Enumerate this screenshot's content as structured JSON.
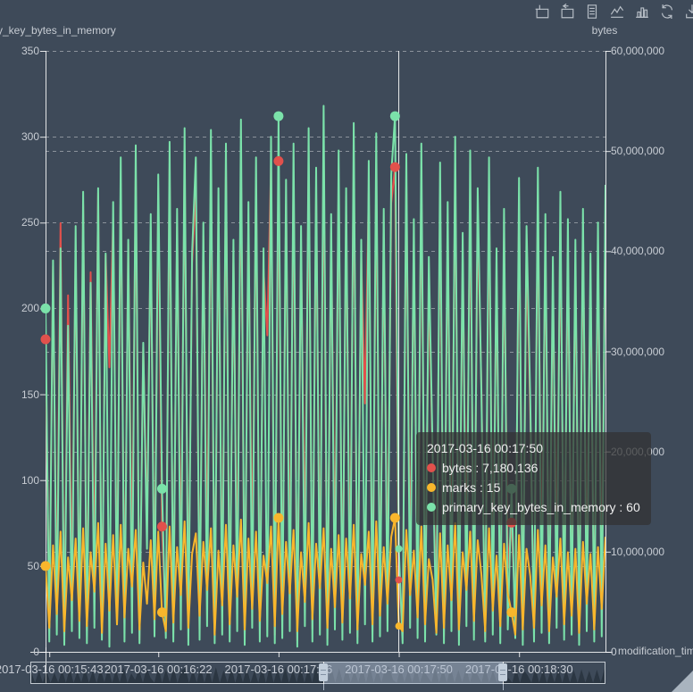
{
  "toolbar": {
    "icons": [
      {
        "name": "area-zoom-icon"
      },
      {
        "name": "zoom-reset-icon"
      },
      {
        "name": "data-view-icon"
      },
      {
        "name": "line-chart-icon"
      },
      {
        "name": "bar-chart-icon"
      },
      {
        "name": "restore-icon"
      },
      {
        "name": "save-image-icon"
      }
    ]
  },
  "chart_data": {
    "type": "line",
    "grid": {
      "dashed_gridlines": true,
      "legend": "none"
    },
    "y_axis_left": {
      "name": "primary_key_bytes_in_memory",
      "min": 0,
      "max": 350,
      "tick_values": [
        0,
        50,
        100,
        150,
        200,
        250,
        300,
        350
      ],
      "tick_labels": [
        "0",
        "50",
        "100",
        "150",
        "200",
        "250",
        "300",
        "350"
      ]
    },
    "y_axis_right": {
      "name": "bytes",
      "min": 0,
      "max": 60000000,
      "tick_values": [
        0,
        10000000,
        20000000,
        30000000,
        40000000,
        50000000,
        60000000
      ],
      "tick_labels": [
        "0",
        "10,000,000",
        "20,000,000",
        "30,000,000",
        "40,000,000",
        "50,000,000",
        "60,000,000"
      ]
    },
    "x_axis": {
      "name": "modification_time",
      "labels": [
        {
          "text": "2017-03-16 00:15:43",
          "index": 1
        },
        {
          "text": "2017-03-16 00:16:22",
          "index": 30
        },
        {
          "text": "2017-03-16 00:17:06",
          "index": 62
        },
        {
          "text": "2017-03-16 00:17:50",
          "index": 94
        },
        {
          "text": "2017-03-16 00:18:30",
          "index": 126
        }
      ]
    },
    "symbol_indices": [
      0,
      31,
      62,
      93,
      124
    ],
    "hover": {
      "index": 94,
      "time": "2017-03-16 00:17:50",
      "values": {
        "bytes": 7180136,
        "marks": 15,
        "primary_key_bytes_in_memory": 60
      }
    },
    "series": [
      {
        "name": "bytes",
        "axis": "right",
        "color": "#e1514c",
        "values": [
          31200000,
          2400000,
          38500000,
          4100000,
          42800000,
          1500000,
          35600000,
          6800000,
          40200000,
          3200000,
          44700000,
          2100000,
          37900000,
          7400000,
          45800000,
          1800000,
          39600000,
          28400000,
          43200000,
          5600000,
          46800000,
          2900000,
          40800000,
          8200000,
          47600000,
          1200000,
          30400000,
          12600000,
          41900000,
          4800000,
          45300000,
          12500000,
          2600000,
          48200000,
          1900000,
          42400000,
          7800000,
          49000000,
          3400000,
          38800000,
          46200000,
          2200000,
          41500000,
          9400000,
          47800000,
          1600000,
          44100000,
          5200000,
          48400000,
          2800000,
          39700000,
          6600000,
          49600000,
          1400000,
          43000000,
          8800000,
          46400000,
          2500000,
          38200000,
          31600000,
          48800000,
          1700000,
          49000000,
          3600000,
          44600000,
          7200000,
          47200000,
          1100000,
          40400000,
          9800000,
          48600000,
          2300000,
          45400000,
          6400000,
          50200000,
          1300000,
          41800000,
          8600000,
          46800000,
          2700000,
          43600000,
          7000000,
          49200000,
          1500000,
          39400000,
          24800000,
          45800000,
          2000000,
          48000000,
          4400000,
          41200000,
          6200000,
          44800000,
          48400000,
          7180136,
          1800000,
          46600000,
          8000000,
          40600000,
          3000000,
          47400000,
          2600000,
          36800000,
          19400000,
          5000000,
          45200000,
          1600000,
          42000000,
          7600000,
          48200000,
          2100000,
          39000000,
          9200000,
          46000000,
          2900000,
          43400000,
          26200000,
          1400000,
          45600000,
          6000000,
          37600000,
          2400000,
          41000000,
          8400000,
          12900000,
          3800000,
          44200000,
          1700000,
          39800000,
          23600000,
          2200000,
          45000000,
          7800000,
          40800000,
          1900000,
          36400000,
          8800000,
          42600000,
          3300000,
          40200000,
          5400000,
          38600000,
          1600000,
          41400000,
          7000000,
          37200000,
          2800000,
          39600000,
          6600000,
          43800000
        ]
      },
      {
        "name": "primary_key_bytes_in_memory",
        "axis": "left",
        "color": "#7be2aa",
        "values": [
          200,
          6,
          228,
          10,
          235,
          4,
          190,
          12,
          248,
          8,
          268,
          5,
          215,
          14,
          270,
          7,
          232,
          3,
          262,
          16,
          288,
          6,
          240,
          11,
          295,
          5,
          180,
          60,
          255,
          9,
          278,
          95,
          8,
          297,
          6,
          258,
          13,
          305,
          4,
          232,
          288,
          7,
          250,
          15,
          304,
          5,
          270,
          10,
          296,
          6,
          240,
          12,
          310,
          4,
          262,
          14,
          288,
          6,
          235,
          9,
          300,
          5,
          312,
          8,
          275,
          12,
          296,
          3,
          248,
          15,
          305,
          6,
          282,
          10,
          318,
          4,
          255,
          13,
          292,
          7,
          270,
          11,
          308,
          5,
          240,
          16,
          286,
          6,
          302,
          9,
          258,
          12,
          278,
          312,
          60,
          5,
          290,
          14,
          252,
          8,
          296,
          6,
          230,
          118,
          10,
          285,
          5,
          262,
          12,
          300,
          4,
          244,
          15,
          292,
          7,
          270,
          150,
          6,
          288,
          10,
          235,
          5,
          258,
          13,
          95,
          8,
          276,
          4,
          248,
          146,
          6,
          282,
          11,
          255,
          5,
          230,
          14,
          268,
          7,
          252,
          10,
          240,
          4,
          258,
          12,
          232,
          6,
          250,
          9,
          272
        ]
      },
      {
        "name": "marks",
        "axis": "left",
        "color": "#f8b62c",
        "values": [
          50,
          14,
          62,
          22,
          70,
          12,
          55,
          30,
          66,
          18,
          72,
          15,
          58,
          35,
          75,
          11,
          63,
          24,
          68,
          16,
          74,
          20,
          60,
          38,
          71,
          13,
          52,
          28,
          65,
          19,
          70,
          23,
          12,
          73,
          17,
          61,
          33,
          76,
          14,
          57,
          69,
          21,
          64,
          36,
          72,
          10,
          59,
          27,
          74,
          16,
          62,
          32,
          77,
          13,
          66,
          25,
          70,
          18,
          56,
          40,
          73,
          15,
          78,
          22,
          64,
          34,
          71,
          12,
          58,
          29,
          75,
          19,
          63,
          37,
          72,
          14,
          60,
          26,
          68,
          17,
          66,
          31,
          74,
          13,
          57,
          39,
          70,
          16,
          76,
          21,
          61,
          28,
          67,
          78,
          15,
          12,
          71,
          33,
          59,
          20,
          73,
          16,
          54,
          42,
          11,
          69,
          14,
          62,
          30,
          75,
          13,
          58,
          36,
          70,
          18,
          65,
          45,
          12,
          72,
          24,
          56,
          15,
          63,
          34,
          23,
          10,
          68,
          13,
          60,
          44,
          14,
          71,
          27,
          62,
          12,
          55,
          32,
          66,
          16,
          58,
          21,
          60,
          11,
          64,
          28,
          57,
          13,
          61,
          25,
          67
        ]
      }
    ]
  },
  "tooltip": {
    "title": "2017-03-16 00:17:50",
    "rows": [
      {
        "color": "#e1514c",
        "text": "bytes : 7,180,136"
      },
      {
        "color": "#f8b62c",
        "text": "marks : 15"
      },
      {
        "color": "#7be2aa",
        "text": "primary_key_bytes_in_memory : 60"
      }
    ]
  },
  "datazoom": {
    "window": [
      0.509,
      0.821
    ]
  },
  "colors": {
    "background": "#3e4a59",
    "axis_label": "#c7ccd3",
    "grid_line": "rgba(255,255,255,0.4)",
    "axis_line": "rgba(255,255,255,0.85)",
    "tooltip_bg": "rgba(50,50,50,0.72)",
    "selection_fill": "rgba(173,188,207,0.5)"
  }
}
